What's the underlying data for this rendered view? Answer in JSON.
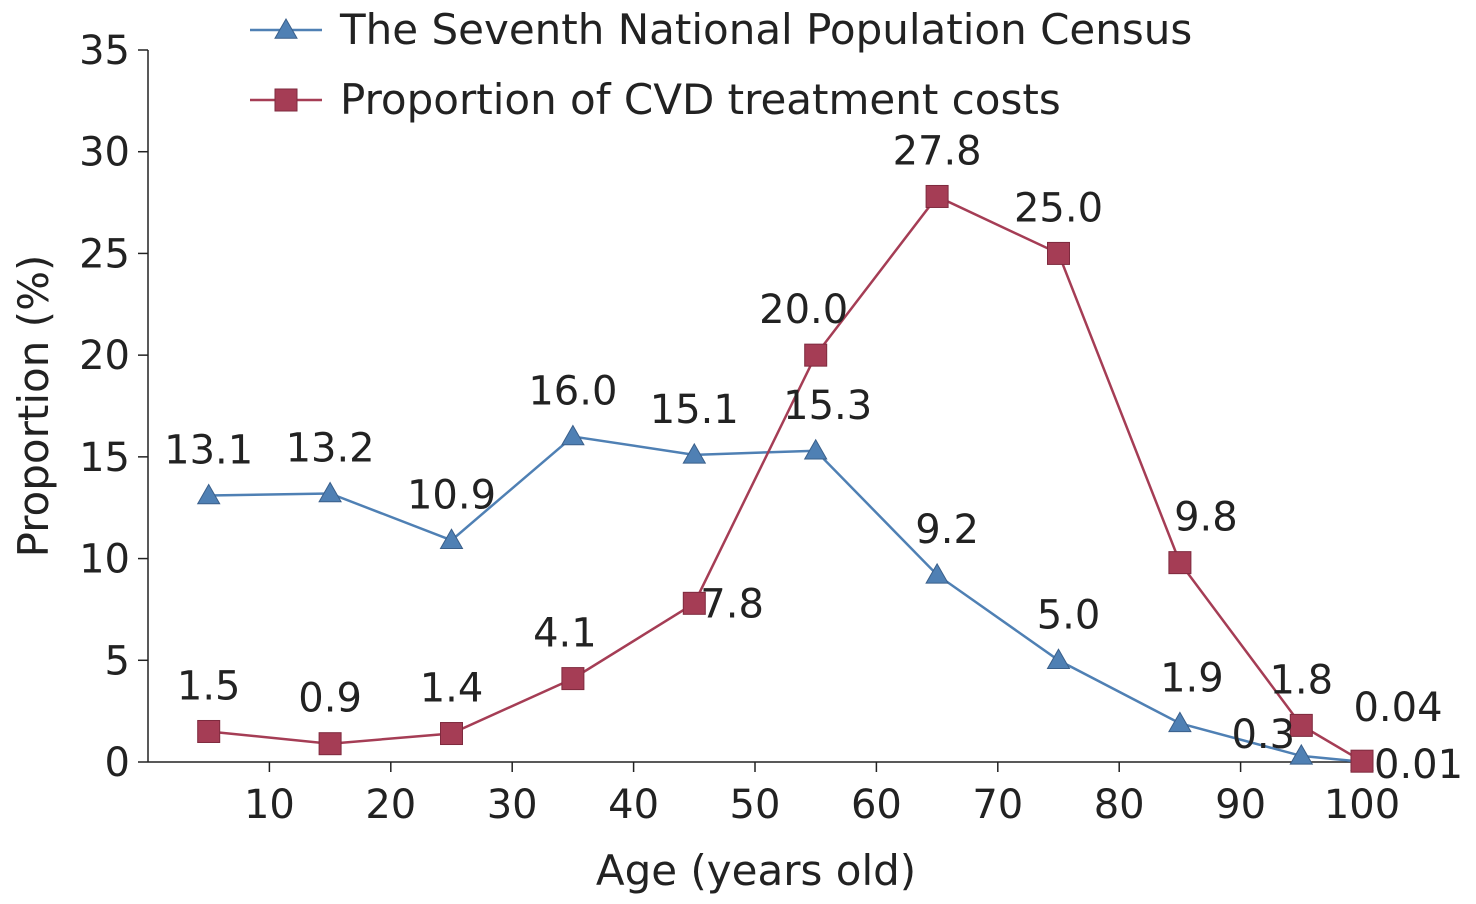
{
  "chart_data": {
    "type": "line",
    "xlabel": "Age (years old)",
    "ylabel": "Proportion (%)",
    "xlim": [
      0,
      100
    ],
    "ylim": [
      0,
      35
    ],
    "x_ticks": [
      10,
      20,
      30,
      40,
      50,
      60,
      70,
      80,
      90,
      100
    ],
    "y_ticks": [
      0,
      5,
      10,
      15,
      20,
      25,
      30,
      35
    ],
    "grid": false,
    "legend_position": "top",
    "x": [
      5,
      15,
      25,
      35,
      45,
      55,
      65,
      75,
      85,
      95,
      100
    ],
    "series": [
      {
        "name": "The Seventh National Population Census",
        "color": "#4f80b4",
        "marker": "triangle",
        "values": [
          13.1,
          13.2,
          10.9,
          16.0,
          15.1,
          15.3,
          9.2,
          5.0,
          1.9,
          0.3,
          0.01
        ],
        "labels": [
          "13.1",
          "13.2",
          "10.9",
          "16.0",
          "15.1",
          "15.3",
          "9.2",
          "5.0",
          "1.9",
          "0.3",
          "0.01"
        ]
      },
      {
        "name": "Proportion of CVD treatment costs",
        "color": "#a53d55",
        "marker": "square",
        "values": [
          1.5,
          0.9,
          1.4,
          4.1,
          7.8,
          20.0,
          27.8,
          25.0,
          9.8,
          1.8,
          0.04
        ],
        "labels": [
          "1.5",
          "0.9",
          "1.4",
          "4.1",
          "7.8",
          "20.0",
          "27.8",
          "25.0",
          "9.8",
          "1.8",
          "0.04"
        ]
      }
    ]
  }
}
